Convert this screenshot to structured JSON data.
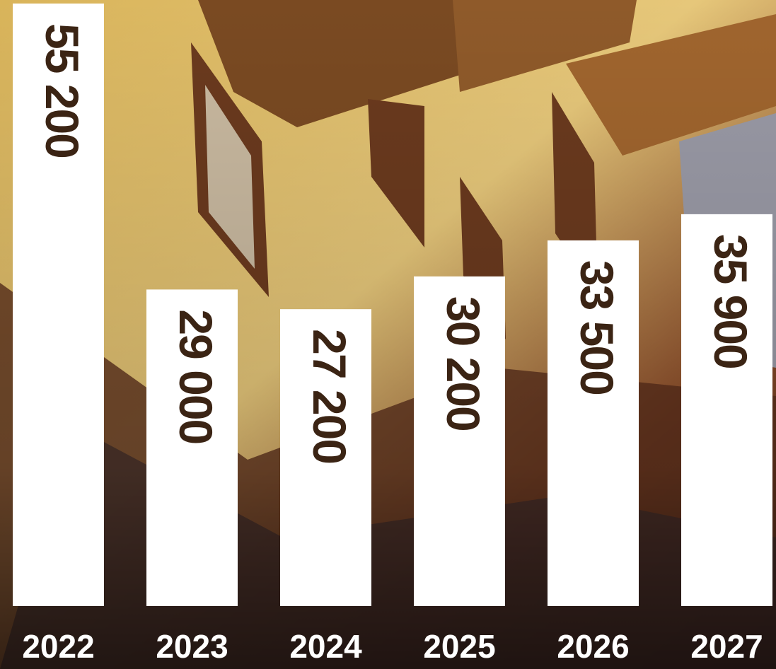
{
  "chart_data": {
    "type": "bar",
    "categories": [
      "2022",
      "2023",
      "2024",
      "2025",
      "2026",
      "2027"
    ],
    "values": [
      55200,
      29000,
      27200,
      30200,
      33500,
      35900
    ],
    "value_labels": [
      "55 200",
      "29 000",
      "27 200",
      "30 200",
      "33 500",
      "35 900"
    ],
    "color": "#ffffff"
  }
}
